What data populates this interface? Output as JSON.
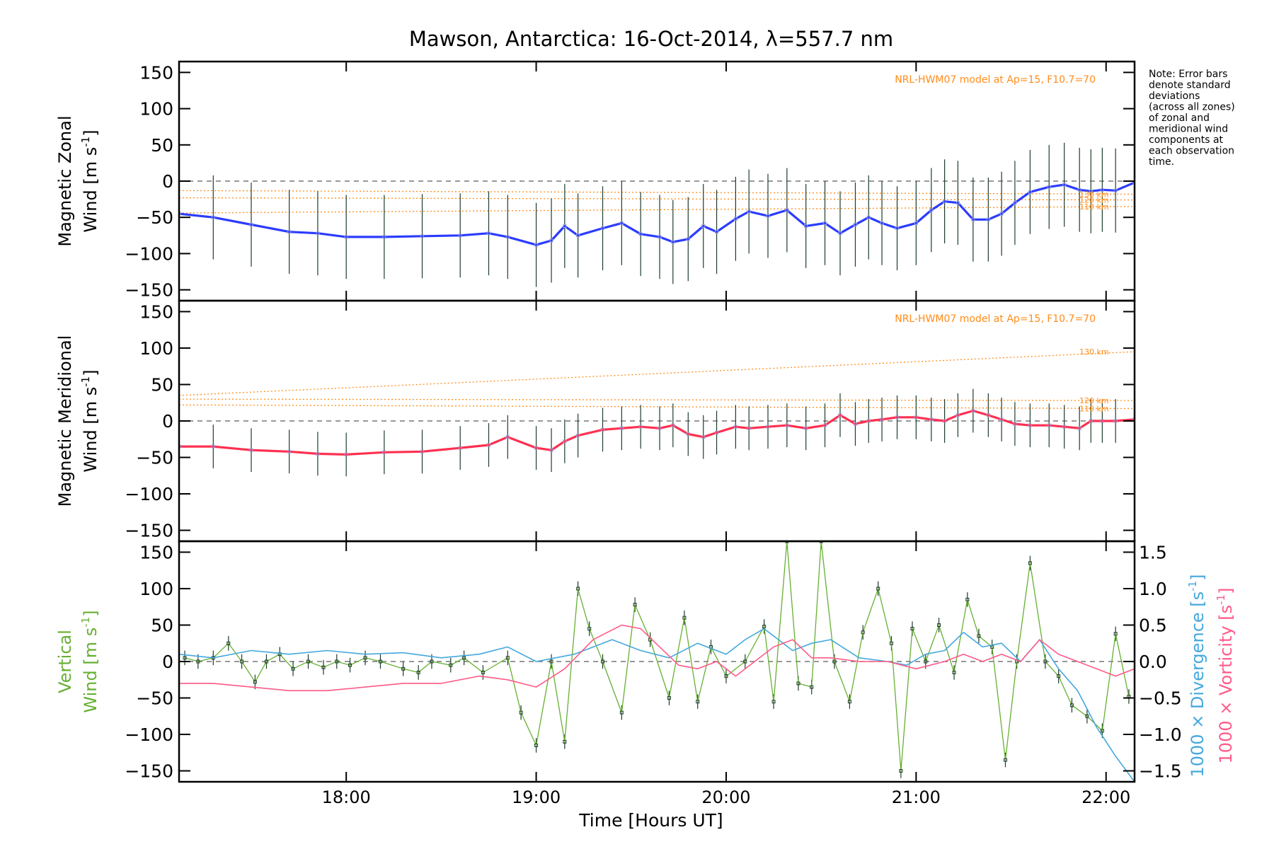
{
  "title": "Mawson, Antarctica: 16-Oct-2014, λ=557.7 nm",
  "note": [
    "Note: Error bars",
    "denote standard",
    "deviations",
    "(across all zones)",
    "of zonal and",
    "meridional wind",
    "components at",
    "each observation",
    "time."
  ],
  "model_label": "NRL-HWM07 model at Ap=15, F10.7=70",
  "x_axis": {
    "label": "Time [Hours UT]",
    "range_hours": [
      17.12,
      22.15
    ],
    "ticks": [
      {
        "hour": 18,
        "label": "18:00"
      },
      {
        "hour": 19,
        "label": "19:00"
      },
      {
        "hour": 20,
        "label": "20:00"
      },
      {
        "hour": 21,
        "label": "21:00"
      },
      {
        "hour": 22,
        "label": "22:00"
      }
    ]
  },
  "colors": {
    "zonal": "#2b3cff",
    "meridional": "#ff3050",
    "vertical": "#66b032",
    "divergence": "#44a8dd",
    "vorticity": "#ff5a88",
    "model": "#ff8c1a",
    "points": "#9aa0dd",
    "errorbar": "#1d3d2a"
  },
  "chart_data": [
    {
      "type": "line",
      "panel": "zonal",
      "ylabel_line1": "Magnetic Zonal",
      "ylabel_line2": "Wind [m s",
      "ylabel_sup": "-1",
      "ylabel_close": "]",
      "ylim": [
        -165,
        165
      ],
      "yticks": [
        -150,
        -100,
        -50,
        0,
        50,
        100,
        150
      ],
      "zero_line": true,
      "series": [
        {
          "x": [
            17.12,
            17.3,
            17.5,
            17.7,
            17.85,
            18.0,
            18.2,
            18.4,
            18.6,
            18.75,
            18.85,
            19.0,
            19.08,
            19.15,
            19.22,
            19.35,
            19.45,
            19.55,
            19.65,
            19.72,
            19.8,
            19.88,
            19.95,
            20.05,
            20.12,
            20.22,
            20.32,
            20.42,
            20.52,
            20.6,
            20.68,
            20.75,
            20.82,
            20.9,
            21.0,
            21.08,
            21.15,
            21.22,
            21.3,
            21.38,
            21.45,
            21.52,
            21.6,
            21.7,
            21.78,
            21.86,
            21.92,
            21.98,
            22.05,
            22.15
          ],
          "y": [
            -45,
            -50,
            -60,
            -70,
            -72,
            -77,
            -77,
            -76,
            -75,
            -72,
            -77,
            -88,
            -82,
            -62,
            -75,
            -65,
            -58,
            -73,
            -77,
            -84,
            -80,
            -62,
            -70,
            -52,
            -42,
            -48,
            -40,
            -62,
            -58,
            -72,
            -60,
            -50,
            -58,
            -65,
            -58,
            -40,
            -28,
            -30,
            -53,
            -53,
            -45,
            -30,
            -15,
            -8,
            -5,
            -12,
            -14,
            -12,
            -13,
            -2
          ]
        }
      ],
      "model": [
        {
          "altitude": "130 km",
          "y_start": -13,
          "y_end": -18
        },
        {
          "altitude": "120 km",
          "y_start": -23,
          "y_end": -26
        },
        {
          "altitude": "110 km",
          "y_start": -44,
          "y_end": -35
        }
      ]
    },
    {
      "type": "line",
      "panel": "meridional",
      "ylabel_line1": "Magnetic Meridional",
      "ylabel_line2": "Wind [m s",
      "ylabel_sup": "-1",
      "ylabel_close": "]",
      "ylim": [
        -165,
        165
      ],
      "yticks": [
        -150,
        -100,
        -50,
        0,
        50,
        100,
        150
      ],
      "zero_line": true,
      "series": [
        {
          "x": [
            17.12,
            17.3,
            17.5,
            17.7,
            17.85,
            18.0,
            18.2,
            18.4,
            18.6,
            18.75,
            18.85,
            19.0,
            19.08,
            19.15,
            19.22,
            19.35,
            19.45,
            19.55,
            19.65,
            19.72,
            19.8,
            19.88,
            19.95,
            20.05,
            20.12,
            20.22,
            20.32,
            20.42,
            20.52,
            20.6,
            20.68,
            20.75,
            20.82,
            20.9,
            21.0,
            21.08,
            21.15,
            21.22,
            21.3,
            21.38,
            21.45,
            21.52,
            21.6,
            21.7,
            21.78,
            21.86,
            21.92,
            21.98,
            22.05,
            22.15
          ],
          "y": [
            -35,
            -35,
            -40,
            -42,
            -45,
            -46,
            -43,
            -42,
            -37,
            -33,
            -22,
            -37,
            -40,
            -28,
            -20,
            -12,
            -10,
            -8,
            -10,
            -6,
            -18,
            -22,
            -16,
            -8,
            -10,
            -8,
            -6,
            -10,
            -6,
            8,
            -4,
            0,
            2,
            5,
            5,
            2,
            0,
            8,
            14,
            8,
            2,
            -4,
            -6,
            -6,
            -8,
            -10,
            0,
            0,
            0,
            2
          ]
        }
      ],
      "model": [
        {
          "altitude": "130 km",
          "y_start": 35,
          "y_end": 95
        },
        {
          "altitude": "120 km",
          "y_start": 30,
          "y_end": 28
        },
        {
          "altitude": "110 km",
          "y_start": 22,
          "y_end": 17
        }
      ]
    },
    {
      "type": "line",
      "panel": "vertical",
      "ylabel_line1": "Vertical",
      "ylabel_line2": "Wind [m s",
      "ylabel_sup": "-1",
      "ylabel_close": "]",
      "ylim": [
        -165,
        165
      ],
      "yticks": [
        -150,
        -100,
        -50,
        0,
        50,
        100,
        150
      ],
      "zero_line": true,
      "y2label_div": "1000 × Divergence [s",
      "y2label_vort": "1000 × Vorticity [s",
      "y2label_sup": "-1",
      "y2label_close": "]",
      "y2lim": [
        -1.65,
        1.65
      ],
      "y2ticks": [
        {
          "value": 1.5,
          "label": "1.5"
        },
        {
          "value": 1.0,
          "label": "1.0"
        },
        {
          "value": 0.5,
          "label": "0.5"
        },
        {
          "value": 0.0,
          "label": "0.0"
        },
        {
          "value": -0.5,
          "label": "−0.5"
        },
        {
          "value": -1.0,
          "label": "−1.0"
        },
        {
          "value": -1.5,
          "label": "−1.5"
        }
      ],
      "series": [
        {
          "name": "Vertical Wind",
          "axis": "left",
          "x": [
            17.15,
            17.22,
            17.3,
            17.38,
            17.45,
            17.52,
            17.58,
            17.65,
            17.72,
            17.8,
            17.88,
            17.95,
            18.02,
            18.1,
            18.18,
            18.3,
            18.38,
            18.45,
            18.55,
            18.62,
            18.72,
            18.85,
            18.92,
            19.0,
            19.08,
            19.15,
            19.22,
            19.28,
            19.35,
            19.45,
            19.52,
            19.6,
            19.7,
            19.78,
            19.85,
            19.92,
            20.0,
            20.1,
            20.2,
            20.25,
            20.32,
            20.38,
            20.45,
            20.5,
            20.57,
            20.65,
            20.72,
            20.8,
            20.87,
            20.92,
            20.98,
            21.05,
            21.12,
            21.2,
            21.27,
            21.33,
            21.4,
            21.47,
            21.53,
            21.6,
            21.68,
            21.75,
            21.82,
            21.9,
            21.98,
            22.05,
            22.12
          ],
          "y": [
            5,
            0,
            5,
            25,
            0,
            -28,
            0,
            10,
            -10,
            0,
            -8,
            0,
            -5,
            5,
            0,
            -10,
            -15,
            0,
            -5,
            5,
            -15,
            5,
            -70,
            -115,
            0,
            -110,
            100,
            45,
            0,
            -70,
            78,
            30,
            -50,
            60,
            -55,
            20,
            -20,
            0,
            48,
            -55,
            165,
            -30,
            -35,
            165,
            0,
            -55,
            40,
            100,
            25,
            -150,
            45,
            0,
            50,
            -15,
            85,
            35,
            20,
            -135,
            0,
            135,
            0,
            -20,
            -60,
            -75,
            -95,
            38,
            -48
          ]
        },
        {
          "name": "Divergence",
          "axis": "right",
          "x": [
            17.12,
            17.3,
            17.5,
            17.7,
            17.9,
            18.1,
            18.3,
            18.5,
            18.7,
            18.85,
            19.0,
            19.2,
            19.4,
            19.55,
            19.7,
            19.85,
            20.0,
            20.1,
            20.2,
            20.35,
            20.45,
            20.55,
            20.7,
            20.85,
            20.95,
            21.05,
            21.15,
            21.25,
            21.35,
            21.45,
            21.55,
            21.65,
            21.75,
            21.85,
            21.95,
            22.05,
            22.15
          ],
          "y": [
            0.1,
            0.05,
            0.15,
            0.1,
            0.15,
            0.1,
            0.12,
            0.05,
            0.1,
            0.2,
            0.0,
            0.1,
            0.3,
            0.15,
            0.05,
            0.25,
            0.1,
            0.3,
            0.45,
            0.15,
            0.25,
            0.3,
            0.05,
            0.0,
            -0.05,
            0.1,
            0.15,
            0.4,
            0.2,
            0.25,
            0.0,
            0.3,
            -0.1,
            -0.4,
            -0.9,
            -1.3,
            -1.65
          ]
        },
        {
          "name": "Vorticity",
          "axis": "right",
          "x": [
            17.12,
            17.3,
            17.5,
            17.7,
            17.9,
            18.1,
            18.3,
            18.5,
            18.7,
            18.85,
            19.0,
            19.15,
            19.3,
            19.45,
            19.55,
            19.65,
            19.75,
            19.85,
            19.95,
            20.05,
            20.15,
            20.25,
            20.35,
            20.45,
            20.55,
            20.7,
            20.85,
            21.0,
            21.15,
            21.25,
            21.35,
            21.45,
            21.55,
            21.65,
            21.75,
            21.85,
            21.95,
            22.05,
            22.15
          ],
          "y": [
            -0.3,
            -0.3,
            -0.35,
            -0.4,
            -0.4,
            -0.35,
            -0.3,
            -0.3,
            -0.2,
            -0.25,
            -0.35,
            -0.1,
            0.3,
            0.5,
            0.45,
            0.2,
            -0.05,
            -0.1,
            0.0,
            -0.2,
            0.0,
            0.2,
            0.3,
            0.05,
            0.05,
            0.0,
            0.0,
            -0.1,
            0.0,
            0.1,
            0.0,
            0.1,
            0.0,
            0.3,
            0.1,
            0.0,
            -0.1,
            -0.2,
            -0.1
          ]
        }
      ]
    }
  ]
}
